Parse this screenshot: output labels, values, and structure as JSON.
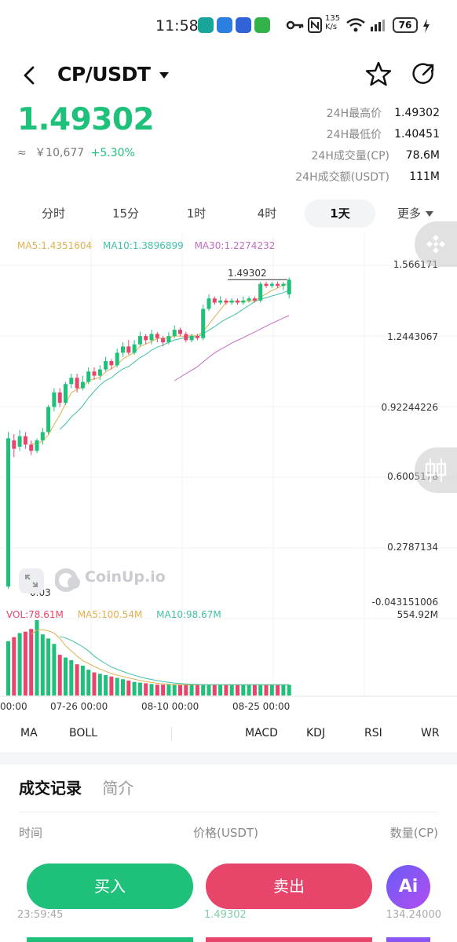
{
  "status_bar": {
    "time": "11:58",
    "net_speed": "135\nK/s",
    "battery": "76"
  },
  "header": {
    "pair": "CP/USDT"
  },
  "price": {
    "last": "1.49302",
    "approx_symbol": "≈",
    "cny": "￥10,677",
    "change": "+5.30%"
  },
  "stats": [
    {
      "label": "24H最高价",
      "value": "1.49302"
    },
    {
      "label": "24H最低价",
      "value": "1.40451"
    },
    {
      "label": "24H成交量(CP)",
      "value": "78.6M"
    },
    {
      "label": "24H成交额(USDT)",
      "value": "111M"
    }
  ],
  "tabs": [
    "分时",
    "15分",
    "1时",
    "4时",
    "1天",
    "更多"
  ],
  "active_tab": "1天",
  "ma_legend": {
    "ma5": "MA5:1.4351604",
    "ma10": "MA10:1.3896899",
    "ma30": "MA30:1.2274232"
  },
  "vol_legend": {
    "vol": "VOL:78.61M",
    "ma5": "MA5:100.54M",
    "ma10": "MA10:98.67M"
  },
  "price_axis": [
    "1.566171",
    "1.2443067",
    "0.92244226",
    "0.6005178",
    "0.2787134",
    "-0.043151006"
  ],
  "vol_axis": "554.92M",
  "last_marker": "1.49302",
  "low_marker": "0.03",
  "x_axis": [
    "00:00",
    "07-26 00:00",
    "08-10 00:00",
    "08-25 00:00"
  ],
  "watermark": "CoinUp.io",
  "indicators": [
    "MA",
    "BOLL",
    "MACD",
    "KDJ",
    "RSI",
    "WR"
  ],
  "records": {
    "tab_active": "成交记录",
    "tab_other": "简介",
    "col_time": "时间",
    "col_price": "价格(USDT)",
    "col_qty": "数量(CP)"
  },
  "partial_row": {
    "time": "23:59:45",
    "price": "1.49302",
    "qty": "134.24000"
  },
  "buttons": {
    "buy": "买入",
    "sell": "卖出",
    "ai": "Ai"
  },
  "colors": {
    "up": "#1fc07a",
    "down": "#e8456b",
    "ma5": "#e0b050",
    "ma10": "#41c1a7",
    "ma30": "#c46bc6"
  },
  "chart_data": {
    "type": "candlestick",
    "title": "",
    "ylim": [
      -0.043151006,
      1.566171
    ],
    "candles": [
      {
        "o": 0.02,
        "c": 0.73,
        "h": 0.76,
        "l": 0.01
      },
      {
        "o": 0.72,
        "c": 0.68,
        "h": 0.75,
        "l": 0.64
      },
      {
        "o": 0.69,
        "c": 0.74,
        "h": 0.77,
        "l": 0.67
      },
      {
        "o": 0.74,
        "c": 0.7,
        "h": 0.76,
        "l": 0.68
      },
      {
        "o": 0.7,
        "c": 0.67,
        "h": 0.72,
        "l": 0.65
      },
      {
        "o": 0.67,
        "c": 0.72,
        "h": 0.73,
        "l": 0.66
      },
      {
        "o": 0.72,
        "c": 0.76,
        "h": 0.78,
        "l": 0.7
      },
      {
        "o": 0.76,
        "c": 0.88,
        "h": 0.89,
        "l": 0.75
      },
      {
        "o": 0.88,
        "c": 0.95,
        "h": 0.97,
        "l": 0.86
      },
      {
        "o": 0.95,
        "c": 0.9,
        "h": 0.97,
        "l": 0.88
      },
      {
        "o": 0.9,
        "c": 0.99,
        "h": 1.0,
        "l": 0.89
      },
      {
        "o": 0.99,
        "c": 1.02,
        "h": 1.04,
        "l": 0.97
      },
      {
        "o": 1.02,
        "c": 0.97,
        "h": 1.04,
        "l": 0.95
      },
      {
        "o": 0.97,
        "c": 1.0,
        "h": 1.03,
        "l": 0.96
      },
      {
        "o": 1.0,
        "c": 1.05,
        "h": 1.07,
        "l": 0.99
      },
      {
        "o": 1.05,
        "c": 1.03,
        "h": 1.07,
        "l": 1.01
      },
      {
        "o": 1.03,
        "c": 1.06,
        "h": 1.08,
        "l": 1.01
      },
      {
        "o": 1.06,
        "c": 1.1,
        "h": 1.12,
        "l": 1.05
      },
      {
        "o": 1.1,
        "c": 1.08,
        "h": 1.11,
        "l": 1.06
      },
      {
        "o": 1.08,
        "c": 1.14,
        "h": 1.16,
        "l": 1.07
      },
      {
        "o": 1.14,
        "c": 1.17,
        "h": 1.19,
        "l": 1.12
      },
      {
        "o": 1.17,
        "c": 1.14,
        "h": 1.2,
        "l": 1.13
      },
      {
        "o": 1.14,
        "c": 1.18,
        "h": 1.2,
        "l": 1.13
      },
      {
        "o": 1.18,
        "c": 1.22,
        "h": 1.24,
        "l": 1.17
      },
      {
        "o": 1.22,
        "c": 1.2,
        "h": 1.23,
        "l": 1.18
      },
      {
        "o": 1.2,
        "c": 1.23,
        "h": 1.25,
        "l": 1.18
      },
      {
        "o": 1.23,
        "c": 1.21,
        "h": 1.24,
        "l": 1.19
      },
      {
        "o": 1.21,
        "c": 1.19,
        "h": 1.22,
        "l": 1.17
      },
      {
        "o": 1.19,
        "c": 1.22,
        "h": 1.24,
        "l": 1.18
      },
      {
        "o": 1.22,
        "c": 1.25,
        "h": 1.27,
        "l": 1.21
      },
      {
        "o": 1.25,
        "c": 1.23,
        "h": 1.26,
        "l": 1.22
      },
      {
        "o": 1.23,
        "c": 1.2,
        "h": 1.24,
        "l": 1.19
      },
      {
        "o": 1.2,
        "c": 1.22,
        "h": 1.23,
        "l": 1.19
      },
      {
        "o": 1.22,
        "c": 1.21,
        "h": 1.23,
        "l": 1.2
      },
      {
        "o": 1.21,
        "c": 1.35,
        "h": 1.37,
        "l": 1.2
      },
      {
        "o": 1.35,
        "c": 1.4,
        "h": 1.42,
        "l": 1.34
      },
      {
        "o": 1.4,
        "c": 1.38,
        "h": 1.41,
        "l": 1.37
      },
      {
        "o": 1.38,
        "c": 1.39,
        "h": 1.41,
        "l": 1.37
      },
      {
        "o": 1.39,
        "c": 1.38,
        "h": 1.4,
        "l": 1.37
      },
      {
        "o": 1.38,
        "c": 1.39,
        "h": 1.4,
        "l": 1.37
      },
      {
        "o": 1.39,
        "c": 1.38,
        "h": 1.4,
        "l": 1.37
      },
      {
        "o": 1.38,
        "c": 1.39,
        "h": 1.41,
        "l": 1.37
      },
      {
        "o": 1.39,
        "c": 1.4,
        "h": 1.41,
        "l": 1.38
      },
      {
        "o": 1.4,
        "c": 1.39,
        "h": 1.41,
        "l": 1.38
      },
      {
        "o": 1.39,
        "c": 1.47,
        "h": 1.48,
        "l": 1.38
      },
      {
        "o": 1.47,
        "c": 1.46,
        "h": 1.48,
        "l": 1.45
      },
      {
        "o": 1.46,
        "c": 1.47,
        "h": 1.48,
        "l": 1.45
      },
      {
        "o": 1.47,
        "c": 1.46,
        "h": 1.48,
        "l": 1.45
      },
      {
        "o": 1.46,
        "c": 1.47,
        "h": 1.48,
        "l": 1.44
      },
      {
        "o": 1.42,
        "c": 1.49,
        "h": 1.5,
        "l": 1.4
      }
    ],
    "volume": [
      400,
      430,
      460,
      470,
      490,
      555,
      450,
      420,
      380,
      300,
      280,
      260,
      230,
      220,
      190,
      170,
      160,
      150,
      140,
      130,
      120,
      110,
      100,
      95,
      90,
      85,
      80,
      80,
      80,
      80,
      80,
      80,
      80,
      80,
      80,
      80,
      80,
      80,
      80,
      80,
      80,
      80,
      80,
      80,
      80,
      80,
      80,
      80,
      80,
      79
    ]
  }
}
